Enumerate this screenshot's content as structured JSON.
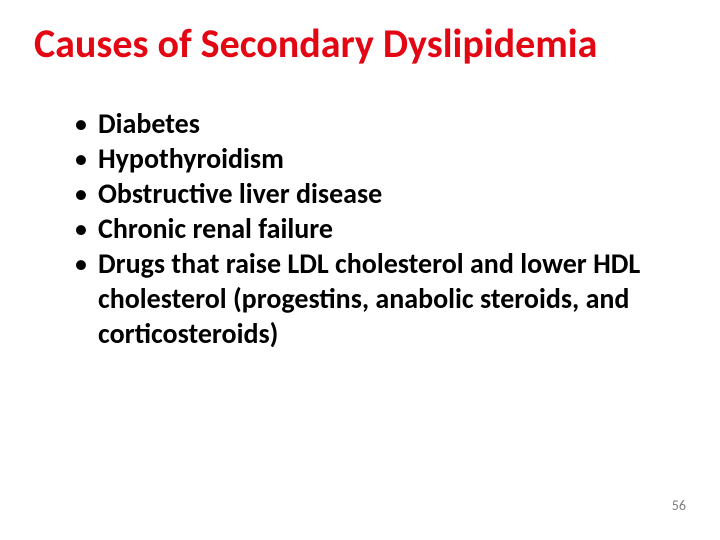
{
  "slide": {
    "title": "Causes of Secondary Dyslipidemia",
    "title_color": "#e30613",
    "title_fontsize": 40,
    "title_fontweight": 700,
    "bullets": [
      "Diabetes",
      "Hypothyroidism",
      "Obstructive liver disease",
      "Chronic renal failure",
      "Drugs that raise LDL cholesterol and lower HDL cholesterol (progestins, anabolic steroids, and corticosteroids)"
    ],
    "bullet_color": "#000000",
    "bullet_fontsize": 28,
    "bullet_fontweight": 700,
    "bullet_marker_color": "#000000",
    "background_color": "#ffffff",
    "page_number": "56",
    "page_number_color": "#7f7f7f",
    "page_number_fontsize": 14
  }
}
